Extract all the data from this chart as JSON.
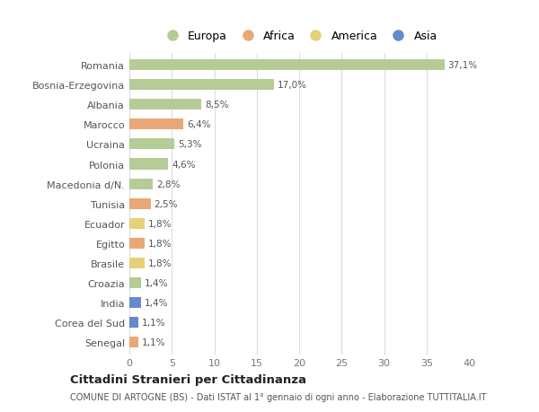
{
  "countries": [
    "Romania",
    "Bosnia-Erzegovina",
    "Albania",
    "Marocco",
    "Ucraina",
    "Polonia",
    "Macedonia d/N.",
    "Tunisia",
    "Ecuador",
    "Egitto",
    "Brasile",
    "Croazia",
    "India",
    "Corea del Sud",
    "Senegal"
  ],
  "values": [
    37.1,
    17.0,
    8.5,
    6.4,
    5.3,
    4.6,
    2.8,
    2.5,
    1.8,
    1.8,
    1.8,
    1.4,
    1.4,
    1.1,
    1.1
  ],
  "labels": [
    "37,1%",
    "17,0%",
    "8,5%",
    "6,4%",
    "5,3%",
    "4,6%",
    "2,8%",
    "2,5%",
    "1,8%",
    "1,8%",
    "1,8%",
    "1,4%",
    "1,4%",
    "1,1%",
    "1,1%"
  ],
  "continents": [
    "Europa",
    "Europa",
    "Europa",
    "Africa",
    "Europa",
    "Europa",
    "Europa",
    "Africa",
    "America",
    "Africa",
    "America",
    "Europa",
    "Asia",
    "Asia",
    "Africa"
  ],
  "continent_colors": {
    "Europa": "#b5cc96",
    "Africa": "#e8a878",
    "America": "#e8d078",
    "Asia": "#6688cc"
  },
  "legend_order": [
    "Europa",
    "Africa",
    "America",
    "Asia"
  ],
  "title": "Cittadini Stranieri per Cittadinanza",
  "subtitle": "COMUNE DI ARTOGNE (BS) - Dati ISTAT al 1° gennaio di ogni anno - Elaborazione TUTTITALIA.IT",
  "xlim": [
    0,
    40
  ],
  "xticks": [
    0,
    5,
    10,
    15,
    20,
    25,
    30,
    35,
    40
  ],
  "background_color": "#ffffff",
  "grid_color": "#dddddd"
}
